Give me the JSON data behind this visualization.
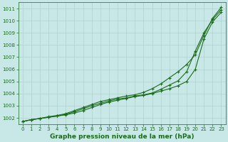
{
  "xlabel": "Graphe pression niveau de la mer (hPa)",
  "bg_color": "#c8e8e8",
  "grid_color": "#b0d0d0",
  "line_color": "#1a6b1a",
  "x": [
    0,
    1,
    2,
    3,
    4,
    5,
    6,
    7,
    8,
    9,
    10,
    11,
    12,
    13,
    14,
    15,
    16,
    17,
    18,
    19,
    20,
    21,
    22,
    23
  ],
  "line1": [
    1001.7,
    1001.85,
    1001.95,
    1002.05,
    1002.15,
    1002.25,
    1002.4,
    1002.6,
    1002.85,
    1003.1,
    1003.3,
    1003.45,
    1003.6,
    1003.75,
    1003.85,
    1004.0,
    1004.2,
    1004.4,
    1004.65,
    1005.0,
    1006.0,
    1008.5,
    1009.9,
    1010.7
  ],
  "line2": [
    1001.7,
    1001.85,
    1001.95,
    1002.05,
    1002.15,
    1002.3,
    1002.5,
    1002.75,
    1003.0,
    1003.2,
    1003.4,
    1003.55,
    1003.65,
    1003.8,
    1003.9,
    1004.05,
    1004.35,
    1004.7,
    1005.05,
    1005.8,
    1007.5,
    1009.0,
    1010.1,
    1010.9
  ],
  "line3": [
    1001.7,
    1001.85,
    1001.95,
    1002.1,
    1002.2,
    1002.35,
    1002.6,
    1002.85,
    1003.1,
    1003.35,
    1003.5,
    1003.65,
    1003.8,
    1003.9,
    1004.1,
    1004.4,
    1004.8,
    1005.3,
    1005.8,
    1006.4,
    1007.2,
    1008.8,
    1010.2,
    1011.1
  ],
  "ylim_min": 1001.5,
  "ylim_max": 1011.5,
  "yticks": [
    1002,
    1003,
    1004,
    1005,
    1006,
    1007,
    1008,
    1009,
    1010,
    1011
  ],
  "xticks": [
    0,
    1,
    2,
    3,
    4,
    5,
    6,
    7,
    8,
    9,
    10,
    11,
    12,
    13,
    14,
    15,
    16,
    17,
    18,
    19,
    20,
    21,
    22,
    23
  ],
  "xtick_labels": [
    "0",
    "1",
    "2",
    "3",
    "4",
    "5",
    "6",
    "7",
    "8",
    "9",
    "10",
    "11",
    "12",
    "13",
    "14",
    "15",
    "16",
    "17",
    "18",
    "19",
    "20",
    "21",
    "22",
    "23"
  ],
  "marker": "+",
  "markersize": 3.5,
  "linewidth": 0.8,
  "tick_fontsize": 5,
  "xlabel_fontsize": 6.5
}
